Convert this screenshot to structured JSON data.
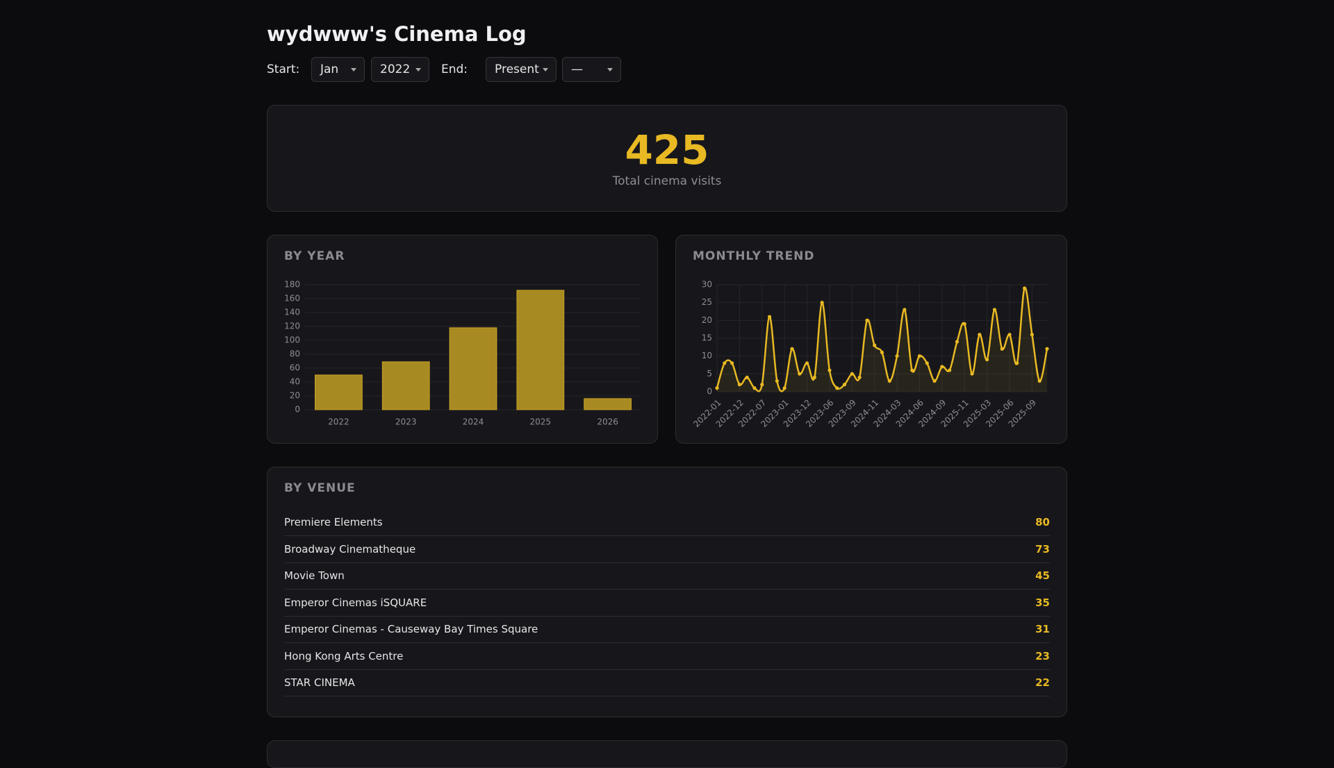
{
  "header": {
    "title": "wydwww's Cinema Log"
  },
  "filters": {
    "start_label": "Start:",
    "start_month": "Jan",
    "start_year": "2022",
    "end_label": "End:",
    "end_month": "Present",
    "end_year": "—"
  },
  "summary": {
    "total": 425,
    "label": "Total cinema visits"
  },
  "chart_data": [
    {
      "type": "bar",
      "title": "BY YEAR",
      "categories": [
        "2022",
        "2023",
        "2024",
        "2025",
        "2026"
      ],
      "values": [
        50,
        69,
        118,
        172,
        16
      ],
      "color": "#a88a22",
      "ylim": [
        0,
        180
      ],
      "yticks": [
        0,
        20,
        40,
        60,
        80,
        100,
        120,
        140,
        160,
        180
      ],
      "grid": true
    },
    {
      "type": "line",
      "title": "MONTHLY TREND",
      "categories": [
        "2022-01",
        null,
        null,
        "2022-12",
        null,
        null,
        "2022-07",
        null,
        null,
        "2023-01",
        null,
        null,
        "2023-12",
        null,
        null,
        "2023-06",
        null,
        null,
        "2023-09",
        null,
        null,
        "2024-11",
        null,
        null,
        "2024-03",
        null,
        null,
        "2024-06",
        null,
        null,
        "2024-09",
        null,
        null,
        "2025-11",
        null,
        null,
        "2025-03",
        null,
        null,
        "2025-06",
        null,
        null,
        "2025-09",
        null,
        null
      ],
      "values": [
        1,
        8,
        8,
        2,
        4,
        1,
        2,
        21,
        3,
        1,
        12,
        5,
        8,
        4,
        25,
        6,
        1,
        2,
        5,
        4,
        20,
        13,
        11,
        3,
        10,
        23,
        6,
        10,
        8,
        3,
        7,
        6,
        14,
        19,
        5,
        16,
        9,
        23,
        12,
        16,
        8,
        29,
        16,
        3,
        12
      ],
      "color": "#e8b923",
      "ylim": [
        0,
        30
      ],
      "yticks": [
        0,
        5,
        10,
        15,
        20,
        25,
        30
      ],
      "grid": true
    }
  ],
  "venues": {
    "title": "BY VENUE",
    "rows": [
      {
        "name": "Premiere Elements",
        "count": 80
      },
      {
        "name": "Broadway Cinematheque",
        "count": 73
      },
      {
        "name": "Movie Town",
        "count": 45
      },
      {
        "name": "Emperor Cinemas iSQUARE",
        "count": 35
      },
      {
        "name": "Emperor Cinemas - Causeway Bay Times Square",
        "count": 31
      },
      {
        "name": "Hong Kong Arts Centre",
        "count": 23
      },
      {
        "name": "STAR CINEMA",
        "count": 22
      }
    ]
  }
}
